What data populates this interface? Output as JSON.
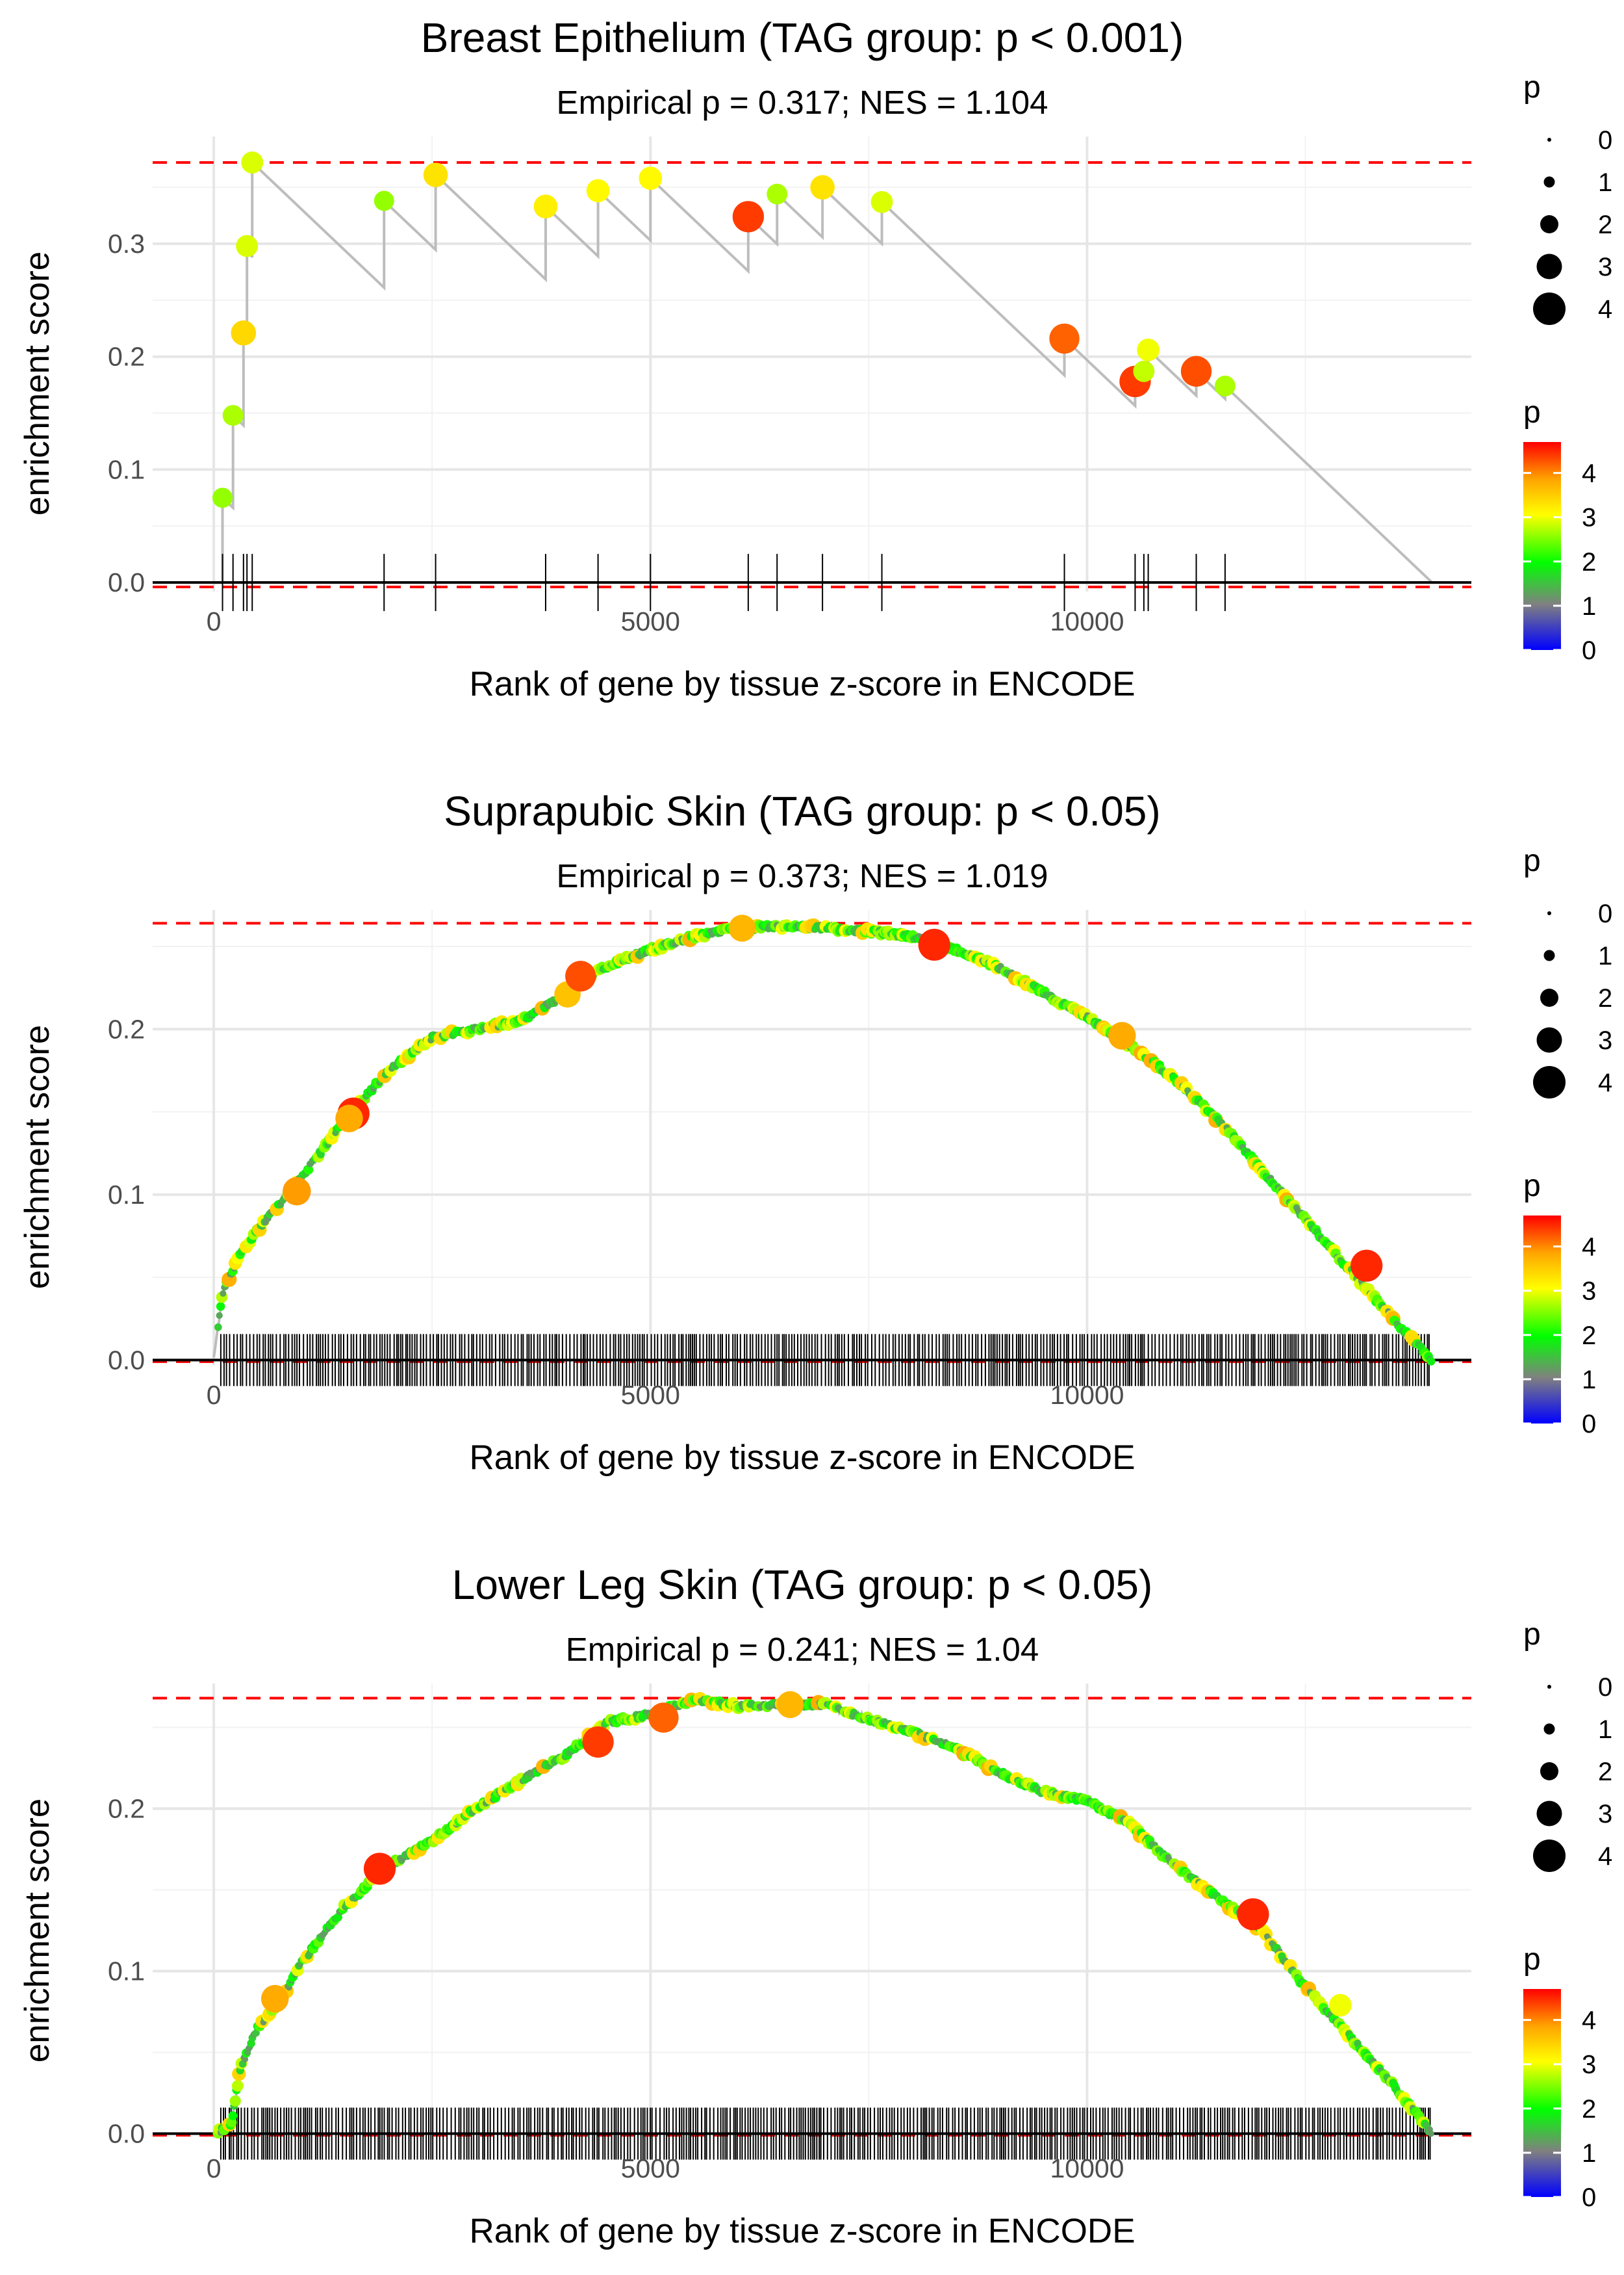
{
  "chart_data": [
    {
      "type": "line",
      "title": "Breast Epithelium (TAG group: p < 0.001)",
      "subtitle": "Empirical p = 0.317; NES = 1.104",
      "xlabel": "Rank of gene by tissue z-score in ENCODE",
      "ylabel": "enrichment score",
      "xlim": [
        -700,
        14400
      ],
      "ylim": [
        -0.008,
        0.395
      ],
      "x_ticks": [
        0,
        5000,
        10000
      ],
      "x_tick_labels": [
        "0",
        "5000",
        "10000"
      ],
      "y_ticks": [
        0,
        0.1,
        0.2,
        0.3
      ],
      "y_tick_labels": [
        "0.0",
        "0.1",
        "0.2",
        "0.3"
      ],
      "max_es": 0.372,
      "min_es": -0.004,
      "hits": [
        {
          "x": 100,
          "es": 0.075,
          "p": 2.6
        },
        {
          "x": 220,
          "es": 0.148,
          "p": 2.7
        },
        {
          "x": 340,
          "es": 0.221,
          "p": 3.4
        },
        {
          "x": 380,
          "es": 0.298,
          "p": 2.9
        },
        {
          "x": 440,
          "es": 0.372,
          "p": 2.9
        },
        {
          "x": 1950,
          "es": 0.338,
          "p": 2.6
        },
        {
          "x": 2540,
          "es": 0.361,
          "p": 3.3
        },
        {
          "x": 3800,
          "es": 0.333,
          "p": 3.2
        },
        {
          "x": 4400,
          "es": 0.347,
          "p": 3.1
        },
        {
          "x": 5000,
          "es": 0.358,
          "p": 3.1
        },
        {
          "x": 6120,
          "es": 0.324,
          "p": 4.4
        },
        {
          "x": 6450,
          "es": 0.344,
          "p": 2.7
        },
        {
          "x": 6970,
          "es": 0.35,
          "p": 3.3
        },
        {
          "x": 7650,
          "es": 0.337,
          "p": 2.9
        },
        {
          "x": 9740,
          "es": 0.216,
          "p": 4.2
        },
        {
          "x": 10550,
          "es": 0.178,
          "p": 4.4
        },
        {
          "x": 10650,
          "es": 0.187,
          "p": 2.8
        },
        {
          "x": 10700,
          "es": 0.206,
          "p": 3.0
        },
        {
          "x": 11250,
          "es": 0.187,
          "p": 4.3
        },
        {
          "x": 11580,
          "es": 0.174,
          "p": 2.7
        }
      ],
      "end_x": 13950,
      "dense": false,
      "legend_size": {
        "title": "p",
        "levels": [
          "0",
          "1",
          "2",
          "3",
          "4"
        ]
      },
      "legend_color": {
        "title": "p",
        "labels": [
          "4",
          "3",
          "2",
          "1",
          "0"
        ]
      }
    },
    {
      "type": "line",
      "title": "Suprapubic Skin (TAG group: p < 0.05)",
      "subtitle": "Empirical p = 0.373; NES = 1.019",
      "xlabel": "Rank of gene by tissue z-score in ENCODE",
      "ylabel": "enrichment score",
      "xlim": [
        -700,
        14400
      ],
      "ylim": [
        -0.003,
        0.272
      ],
      "x_ticks": [
        0,
        5000,
        10000
      ],
      "x_tick_labels": [
        "0",
        "5000",
        "10000"
      ],
      "y_ticks": [
        0,
        0.1,
        0.2
      ],
      "y_tick_labels": [
        "0.0",
        "0.1",
        "0.2"
      ],
      "max_es": 0.264,
      "min_es": -0.001,
      "curve": [
        [
          0,
          0
        ],
        [
          100,
          0.04
        ],
        [
          300,
          0.065
        ],
        [
          600,
          0.085
        ],
        [
          1000,
          0.11
        ],
        [
          1500,
          0.145
        ],
        [
          2000,
          0.175
        ],
        [
          2500,
          0.195
        ],
        [
          3000,
          0.2
        ],
        [
          3500,
          0.205
        ],
        [
          4000,
          0.22
        ],
        [
          4500,
          0.238
        ],
        [
          5000,
          0.248
        ],
        [
          5500,
          0.256
        ],
        [
          6000,
          0.261
        ],
        [
          6500,
          0.262
        ],
        [
          7000,
          0.261
        ],
        [
          7500,
          0.259
        ],
        [
          8000,
          0.256
        ],
        [
          8500,
          0.248
        ],
        [
          9000,
          0.237
        ],
        [
          9500,
          0.222
        ],
        [
          10000,
          0.207
        ],
        [
          10500,
          0.19
        ],
        [
          11000,
          0.17
        ],
        [
          11500,
          0.145
        ],
        [
          12000,
          0.115
        ],
        [
          12500,
          0.085
        ],
        [
          13000,
          0.055
        ],
        [
          13500,
          0.025
        ],
        [
          13950,
          0.0
        ]
      ],
      "big_points": [
        {
          "x": 1600,
          "es": 0.149,
          "p": 4.5
        },
        {
          "x": 1550,
          "es": 0.146,
          "p": 3.8
        },
        {
          "x": 950,
          "es": 0.102,
          "p": 3.9
        },
        {
          "x": 4050,
          "es": 0.221,
          "p": 3.6
        },
        {
          "x": 4200,
          "es": 0.232,
          "p": 4.3
        },
        {
          "x": 6050,
          "es": 0.261,
          "p": 3.7
        },
        {
          "x": 8250,
          "es": 0.251,
          "p": 4.5
        },
        {
          "x": 10400,
          "es": 0.196,
          "p": 3.8
        },
        {
          "x": 13200,
          "es": 0.057,
          "p": 4.5
        }
      ],
      "end_x": 13950,
      "dense": true,
      "legend_size": {
        "title": "p",
        "levels": [
          "0",
          "1",
          "2",
          "3",
          "4"
        ]
      },
      "legend_color": {
        "title": "p",
        "labels": [
          "4",
          "3",
          "2",
          "1",
          "0"
        ]
      }
    },
    {
      "type": "line",
      "title": "Lower Leg Skin (TAG group: p < 0.05)",
      "subtitle": "Empirical p = 0.241; NES = 1.04",
      "xlabel": "Rank of gene by tissue z-score in ENCODE",
      "ylabel": "enrichment score",
      "xlim": [
        -700,
        14400
      ],
      "ylim": [
        -0.003,
        0.277
      ],
      "x_ticks": [
        0,
        5000,
        10000
      ],
      "x_tick_labels": [
        "0",
        "5000",
        "10000"
      ],
      "y_ticks": [
        0,
        0.1,
        0.2
      ],
      "y_tick_labels": [
        "0.0",
        "0.1",
        "0.2"
      ],
      "max_es": 0.268,
      "min_es": -0.001,
      "curve": [
        [
          0,
          0
        ],
        [
          200,
          0.005
        ],
        [
          300,
          0.04
        ],
        [
          500,
          0.065
        ],
        [
          800,
          0.085
        ],
        [
          1000,
          0.105
        ],
        [
          1500,
          0.14
        ],
        [
          2000,
          0.165
        ],
        [
          2500,
          0.18
        ],
        [
          3000,
          0.2
        ],
        [
          3500,
          0.217
        ],
        [
          4000,
          0.232
        ],
        [
          4500,
          0.253
        ],
        [
          5000,
          0.258
        ],
        [
          5500,
          0.267
        ],
        [
          6000,
          0.263
        ],
        [
          6500,
          0.264
        ],
        [
          7000,
          0.264
        ],
        [
          7500,
          0.255
        ],
        [
          8000,
          0.247
        ],
        [
          8500,
          0.237
        ],
        [
          9000,
          0.222
        ],
        [
          9500,
          0.21
        ],
        [
          10000,
          0.205
        ],
        [
          10500,
          0.19
        ],
        [
          11000,
          0.165
        ],
        [
          11500,
          0.145
        ],
        [
          12000,
          0.125
        ],
        [
          12500,
          0.09
        ],
        [
          13000,
          0.06
        ],
        [
          13500,
          0.03
        ],
        [
          13950,
          0.0
        ]
      ],
      "big_points": [
        {
          "x": 700,
          "es": 0.083,
          "p": 3.8
        },
        {
          "x": 1900,
          "es": 0.163,
          "p": 4.5
        },
        {
          "x": 4400,
          "es": 0.241,
          "p": 4.4
        },
        {
          "x": 5150,
          "es": 0.256,
          "p": 4.2
        },
        {
          "x": 6600,
          "es": 0.264,
          "p": 3.7
        },
        {
          "x": 11900,
          "es": 0.135,
          "p": 4.5
        },
        {
          "x": 12900,
          "es": 0.079,
          "p": 3.0
        }
      ],
      "end_x": 13950,
      "dense": true,
      "legend_size": {
        "title": "p",
        "levels": [
          "0",
          "1",
          "2",
          "3",
          "4"
        ]
      },
      "legend_color": {
        "title": "p",
        "labels": [
          "4",
          "3",
          "2",
          "1",
          "0"
        ]
      }
    }
  ]
}
